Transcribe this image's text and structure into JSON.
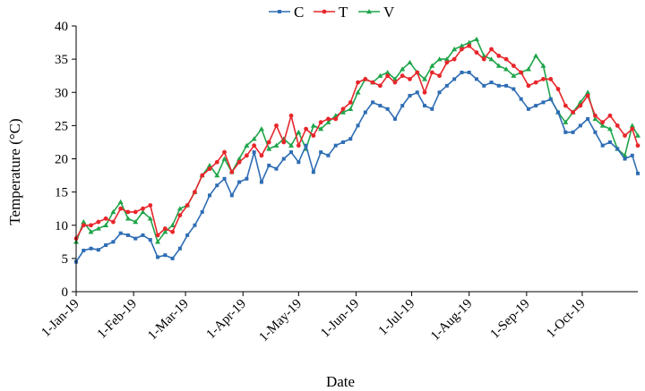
{
  "chart_data": {
    "type": "line",
    "title": "",
    "xlabel": "Date",
    "ylabel": "Temperature (°C)",
    "ylim": [
      0,
      40
    ],
    "yticks": [
      0,
      5,
      10,
      15,
      20,
      25,
      30,
      35,
      40
    ],
    "xlim": [
      "2019-01-01",
      "2019-10-31"
    ],
    "xtick_labels": [
      "1-Jan-19",
      "1-Feb-19",
      "1-Mar-19",
      "1-Apr-19",
      "1-May-19",
      "1-Jun-19",
      "1-Jul-19",
      "1-Aug-19",
      "1-Sep-19",
      "1-Oct-19"
    ],
    "xtick_dates": [
      "2019-01-01",
      "2019-02-01",
      "2019-03-01",
      "2019-04-01",
      "2019-05-01",
      "2019-06-01",
      "2019-07-01",
      "2019-08-01",
      "2019-09-01",
      "2019-10-01"
    ],
    "grid": false,
    "legend_position": "top-center",
    "series": [
      {
        "name": "C",
        "color": "#2E6DB4",
        "marker": "square",
        "x": [
          "2019-01-01",
          "2019-01-05",
          "2019-01-09",
          "2019-01-13",
          "2019-01-17",
          "2019-01-21",
          "2019-01-25",
          "2019-01-29",
          "2019-02-02",
          "2019-02-06",
          "2019-02-10",
          "2019-02-14",
          "2019-02-18",
          "2019-02-22",
          "2019-02-26",
          "2019-03-02",
          "2019-03-06",
          "2019-03-10",
          "2019-03-14",
          "2019-03-18",
          "2019-03-22",
          "2019-03-26",
          "2019-03-30",
          "2019-04-03",
          "2019-04-07",
          "2019-04-11",
          "2019-04-15",
          "2019-04-19",
          "2019-04-23",
          "2019-04-27",
          "2019-05-01",
          "2019-05-05",
          "2019-05-09",
          "2019-05-13",
          "2019-05-17",
          "2019-05-21",
          "2019-05-25",
          "2019-05-29",
          "2019-06-02",
          "2019-06-06",
          "2019-06-10",
          "2019-06-14",
          "2019-06-18",
          "2019-06-22",
          "2019-06-26",
          "2019-06-30",
          "2019-07-04",
          "2019-07-08",
          "2019-07-12",
          "2019-07-16",
          "2019-07-20",
          "2019-07-24",
          "2019-07-28",
          "2019-08-01",
          "2019-08-05",
          "2019-08-09",
          "2019-08-13",
          "2019-08-17",
          "2019-08-21",
          "2019-08-25",
          "2019-08-29",
          "2019-09-02",
          "2019-09-06",
          "2019-09-10",
          "2019-09-14",
          "2019-09-18",
          "2019-09-22",
          "2019-09-26",
          "2019-09-30",
          "2019-10-04",
          "2019-10-08",
          "2019-10-12",
          "2019-10-16",
          "2019-10-20",
          "2019-10-24",
          "2019-10-28",
          "2019-10-31"
        ],
        "y": [
          4.5,
          6.2,
          6.5,
          6.3,
          7.0,
          7.5,
          8.8,
          8.5,
          8.0,
          8.5,
          7.8,
          5.2,
          5.5,
          5.0,
          6.5,
          8.5,
          10.0,
          12.0,
          14.5,
          16.0,
          17.0,
          14.5,
          16.5,
          17.0,
          21.0,
          16.5,
          19.0,
          18.5,
          20.0,
          21.0,
          19.5,
          22.0,
          18.0,
          21.0,
          20.5,
          22.0,
          22.5,
          23.0,
          25.0,
          27.0,
          28.5,
          28.0,
          27.5,
          26.0,
          28.0,
          29.5,
          30.0,
          28.0,
          27.5,
          30.0,
          31.0,
          32.0,
          33.0,
          33.0,
          32.0,
          31.0,
          31.5,
          31.0,
          31.0,
          30.5,
          29.0,
          27.5,
          28.0,
          28.5,
          29.0,
          27.0,
          24.0,
          24.0,
          25.0,
          26.0,
          24.0,
          22.0,
          22.5,
          21.5,
          20.0,
          20.5,
          17.8
        ]
      },
      {
        "name": "T",
        "color": "#E8262B",
        "marker": "circle",
        "x": [
          "2019-01-01",
          "2019-01-05",
          "2019-01-09",
          "2019-01-13",
          "2019-01-17",
          "2019-01-21",
          "2019-01-25",
          "2019-01-29",
          "2019-02-02",
          "2019-02-06",
          "2019-02-10",
          "2019-02-14",
          "2019-02-18",
          "2019-02-22",
          "2019-02-26",
          "2019-03-02",
          "2019-03-06",
          "2019-03-10",
          "2019-03-14",
          "2019-03-18",
          "2019-03-22",
          "2019-03-26",
          "2019-03-30",
          "2019-04-03",
          "2019-04-07",
          "2019-04-11",
          "2019-04-15",
          "2019-04-19",
          "2019-04-23",
          "2019-04-27",
          "2019-05-01",
          "2019-05-05",
          "2019-05-09",
          "2019-05-13",
          "2019-05-17",
          "2019-05-21",
          "2019-05-25",
          "2019-05-29",
          "2019-06-02",
          "2019-06-06",
          "2019-06-10",
          "2019-06-14",
          "2019-06-18",
          "2019-06-22",
          "2019-06-26",
          "2019-06-30",
          "2019-07-04",
          "2019-07-08",
          "2019-07-12",
          "2019-07-16",
          "2019-07-20",
          "2019-07-24",
          "2019-07-28",
          "2019-08-01",
          "2019-08-05",
          "2019-08-09",
          "2019-08-13",
          "2019-08-17",
          "2019-08-21",
          "2019-08-25",
          "2019-08-29",
          "2019-09-02",
          "2019-09-06",
          "2019-09-10",
          "2019-09-14",
          "2019-09-18",
          "2019-09-22",
          "2019-09-26",
          "2019-09-30",
          "2019-10-04",
          "2019-10-08",
          "2019-10-12",
          "2019-10-16",
          "2019-10-20",
          "2019-10-24",
          "2019-10-28",
          "2019-10-31"
        ],
        "y": [
          8.0,
          10.0,
          10.0,
          10.5,
          11.0,
          10.5,
          12.5,
          12.0,
          12.0,
          12.5,
          13.0,
          8.5,
          9.5,
          9.0,
          11.5,
          13.0,
          15.0,
          17.5,
          18.5,
          19.5,
          21.0,
          18.0,
          19.5,
          20.5,
          22.0,
          20.5,
          22.5,
          25.0,
          22.5,
          26.5,
          22.0,
          24.5,
          23.5,
          25.5,
          26.0,
          26.0,
          27.5,
          28.5,
          31.5,
          32.0,
          31.5,
          31.0,
          32.5,
          31.5,
          32.5,
          32.0,
          33.0,
          30.0,
          33.0,
          32.5,
          34.5,
          35.0,
          36.5,
          37.0,
          36.0,
          35.0,
          36.5,
          35.5,
          35.0,
          34.0,
          33.0,
          31.0,
          31.5,
          32.0,
          32.0,
          30.5,
          28.0,
          27.0,
          28.0,
          29.5,
          26.5,
          25.5,
          26.5,
          25.0,
          23.5,
          24.5,
          22.0
        ]
      },
      {
        "name": "V",
        "color": "#1FA54A",
        "marker": "triangle",
        "x": [
          "2019-01-01",
          "2019-01-05",
          "2019-01-09",
          "2019-01-13",
          "2019-01-17",
          "2019-01-21",
          "2019-01-25",
          "2019-01-29",
          "2019-02-02",
          "2019-02-06",
          "2019-02-10",
          "2019-02-14",
          "2019-02-18",
          "2019-02-22",
          "2019-02-26",
          "2019-03-02",
          "2019-03-06",
          "2019-03-10",
          "2019-03-14",
          "2019-03-18",
          "2019-03-22",
          "2019-03-26",
          "2019-03-30",
          "2019-04-03",
          "2019-04-07",
          "2019-04-11",
          "2019-04-15",
          "2019-04-19",
          "2019-04-23",
          "2019-04-27",
          "2019-05-01",
          "2019-05-05",
          "2019-05-09",
          "2019-05-13",
          "2019-05-17",
          "2019-05-21",
          "2019-05-25",
          "2019-05-29",
          "2019-06-02",
          "2019-06-06",
          "2019-06-10",
          "2019-06-14",
          "2019-06-18",
          "2019-06-22",
          "2019-06-26",
          "2019-06-30",
          "2019-07-04",
          "2019-07-08",
          "2019-07-12",
          "2019-07-16",
          "2019-07-20",
          "2019-07-24",
          "2019-07-28",
          "2019-08-01",
          "2019-08-05",
          "2019-08-09",
          "2019-08-13",
          "2019-08-17",
          "2019-08-21",
          "2019-08-25",
          "2019-08-29",
          "2019-09-02",
          "2019-09-06",
          "2019-09-10",
          "2019-09-14",
          "2019-09-18",
          "2019-09-22",
          "2019-09-26",
          "2019-09-30",
          "2019-10-04",
          "2019-10-08",
          "2019-10-12",
          "2019-10-16",
          "2019-10-20",
          "2019-10-24",
          "2019-10-28",
          "2019-10-31"
        ],
        "y": [
          7.5,
          10.5,
          9.0,
          9.5,
          10.0,
          12.0,
          13.5,
          11.0,
          10.5,
          12.0,
          11.0,
          7.5,
          9.0,
          10.0,
          12.5,
          13.0,
          15.0,
          17.5,
          19.0,
          17.5,
          20.0,
          18.0,
          20.0,
          22.0,
          23.0,
          24.5,
          21.5,
          22.0,
          23.0,
          22.0,
          24.0,
          21.5,
          25.0,
          24.5,
          25.5,
          26.5,
          27.0,
          27.5,
          30.0,
          32.0,
          31.5,
          32.5,
          33.0,
          32.0,
          33.5,
          34.5,
          33.0,
          32.0,
          34.0,
          35.0,
          35.0,
          36.5,
          37.0,
          37.5,
          38.0,
          35.5,
          35.0,
          34.0,
          33.5,
          32.5,
          33.0,
          33.5,
          35.5,
          34.0,
          29.0,
          27.0,
          25.5,
          27.0,
          28.5,
          30.0,
          26.0,
          25.0,
          24.5,
          21.5,
          20.5,
          25.0,
          23.5
        ]
      }
    ]
  }
}
